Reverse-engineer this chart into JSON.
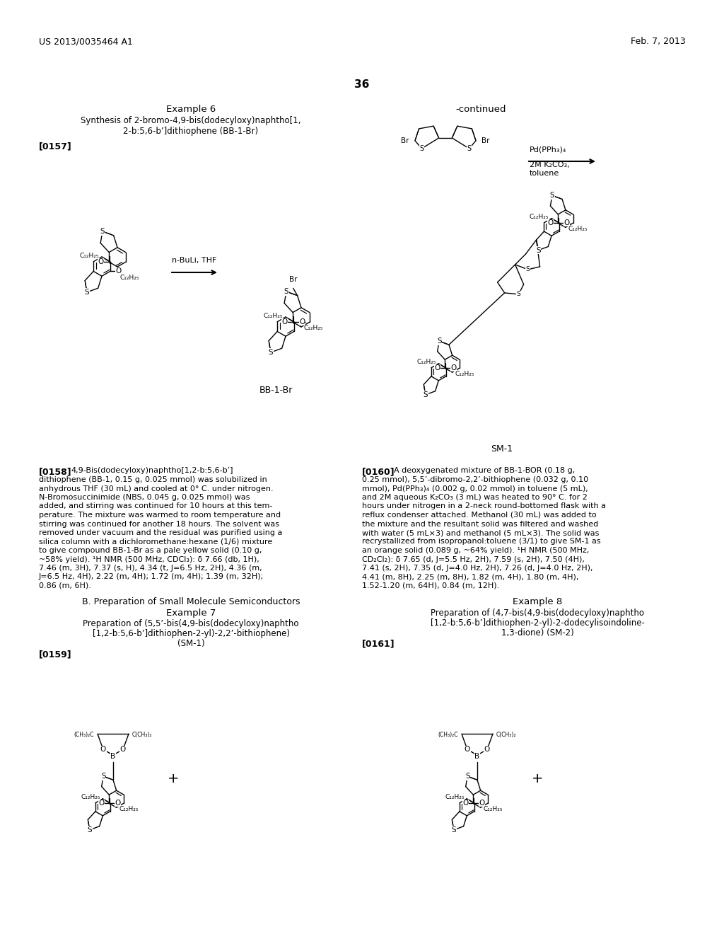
{
  "page_width": 10.24,
  "page_height": 13.2,
  "bg_color": "#ffffff",
  "header_left": "US 2013/0035464 A1",
  "header_right": "Feb. 7, 2013",
  "page_number": "36",
  "title_example6": "Example 6",
  "title_synth": "Synthesis of 2-bromo-4,9-bis(dodecyloxy)naphtho[1,",
  "title_synth2": "2-b:5,6-b’]dithiophene (BB-1-Br)",
  "label_0157": "[0157]",
  "label_continued": "-continued",
  "bb1br_label": "BB-1-Br",
  "sm1_label": "SM-1",
  "label_0158": "[0158]",
  "label_0160": "[0160]",
  "section_b": "B. Preparation of Small Molecule Semiconductors",
  "example7": "Example 7",
  "title_example7": "Preparation of (5,5’-bis(4,9-bis(dodecyloxy)naphtho",
  "title_example7b": "[1,2-b:5,6-b’]dithiophen-2-yl)-2,2’-bithiophene)",
  "title_example7c": "(SM-1)",
  "label_0159": "[0159]",
  "example8": "Example 8",
  "title_example8": "Preparation of (4,7-bis(4,9-bis(dodecyloxy)naphtho",
  "title_example8b": "[1,2-b:5,6-b’]dithiophen-2-yl)-2-dodecylisoindoline-",
  "title_example8c": "1,3-dione) (SM-2)",
  "label_0161": "[0161]",
  "text_0158_lines": [
    "4,9-Bis(dodecyloxy)naphtho[1,2-b:5,6-b’]",
    "dithiophene (BB-1, 0.15 g, 0.025 mmol) was solubilized in",
    "anhydrous THF (30 mL) and cooled at 0° C. under nitrogen.",
    "N-Bromosuccinimide (NBS, 0.045 g, 0.025 mmol) was",
    "added, and stirring was continued for 10 hours at this tem-",
    "perature. The mixture was warmed to room temperature and",
    "stirring was continued for another 18 hours. The solvent was",
    "removed under vacuum and the residual was purified using a",
    "silica column with a dichloromethane:hexane (1/6) mixture",
    "to give compound BB-1-Br as a pale yellow solid (0.10 g,",
    "~58% yield). ¹H NMR (500 MHz, CDCl₃): δ 7.66 (db, 1H),",
    "7.46 (m, 3H), 7.37 (s, H), 4.34 (t, J=6.5 Hz, 2H), 4.36 (m,",
    "J=6.5 Hz, 4H), 2.22 (m, 4H); 1.72 (m, 4H); 1.39 (m, 32H);",
    "0.86 (m, 6H)."
  ],
  "text_0160_lines": [
    "A deoxygenated mixture of BB-1-BOR (0.18 g,",
    "0.25 mmol), 5,5’-dibromo-2,2’-bithiophene (0.032 g, 0.10",
    "mmol), Pd(PPh₃)₄ (0.002 g, 0.02 mmol) in toluene (5 mL),",
    "and 2M aqueous K₂CO₃ (3 mL) was heated to 90° C. for 2",
    "hours under nitrogen in a 2-neck round-bottomed flask with a",
    "reflux condenser attached. Methanol (30 mL) was added to",
    "the mixture and the resultant solid was filtered and washed",
    "with water (5 mL×3) and methanol (5 mL×3). The solid was",
    "recrystallized from isopropanol:toluene (3/1) to give SM-1 as",
    "an orange solid (0.089 g, ~64% yield). ¹H NMR (500 MHz,",
    "CD₂Cl₂): δ 7.65 (d, J=5.5 Hz, 2H), 7.59 (s, 2H), 7.50 (4H),",
    "7.41 (s, 2H), 7.35 (d, J=4.0 Hz, 2H), 7.26 (d, J=4.0 Hz, 2H),",
    "4.41 (m, 8H), 2.25 (m, 8H), 1.82 (m, 4H), 1.80 (m, 4H),",
    "1.52-1.20 (m, 64H), 0.84 (m, 12H)."
  ]
}
